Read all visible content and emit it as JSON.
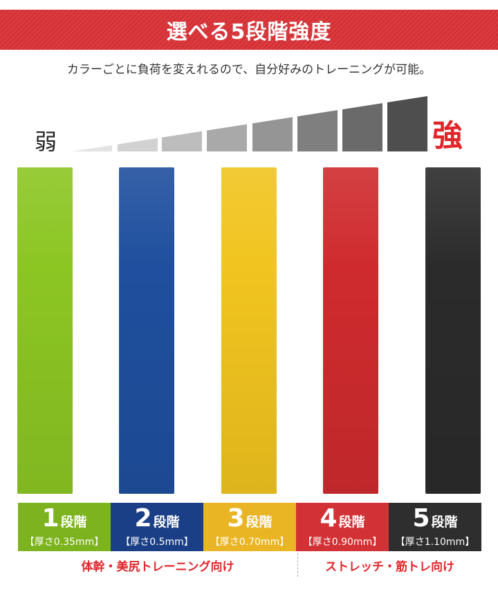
{
  "header": {
    "title": "選べる5段階強度",
    "subtitle": "カラーごとに負荷を変えれるので、自分好みのトレーニングが可能。"
  },
  "scale": {
    "weak_label": "弱",
    "strong_label": "強",
    "accent_color": "#e0262b"
  },
  "bands": [
    {
      "level": "1",
      "unit": "段階",
      "thickness": "【厚さ0.35mm】",
      "color": "#8cc623",
      "tile_color": "#7db31e"
    },
    {
      "level": "2",
      "unit": "段階",
      "thickness": "【厚さ0.5mm】",
      "color": "#1f4f9e",
      "tile_color": "#1a3f86"
    },
    {
      "level": "3",
      "unit": "段階",
      "thickness": "【厚さ0.70mm】",
      "color": "#f1c41f",
      "tile_color": "#eab524"
    },
    {
      "level": "4",
      "unit": "段階",
      "thickness": "【厚さ0.90mm】",
      "color": "#cf2b2e",
      "tile_color": "#d23236"
    },
    {
      "level": "5",
      "unit": "段階",
      "thickness": "【厚さ1.10mm】",
      "color": "#2b2b2b",
      "tile_color": "#2e2e2e"
    }
  ],
  "usage": {
    "left": "体幹・美尻トレーニング向け",
    "right": "ストレッチ・筋トレ向け"
  }
}
